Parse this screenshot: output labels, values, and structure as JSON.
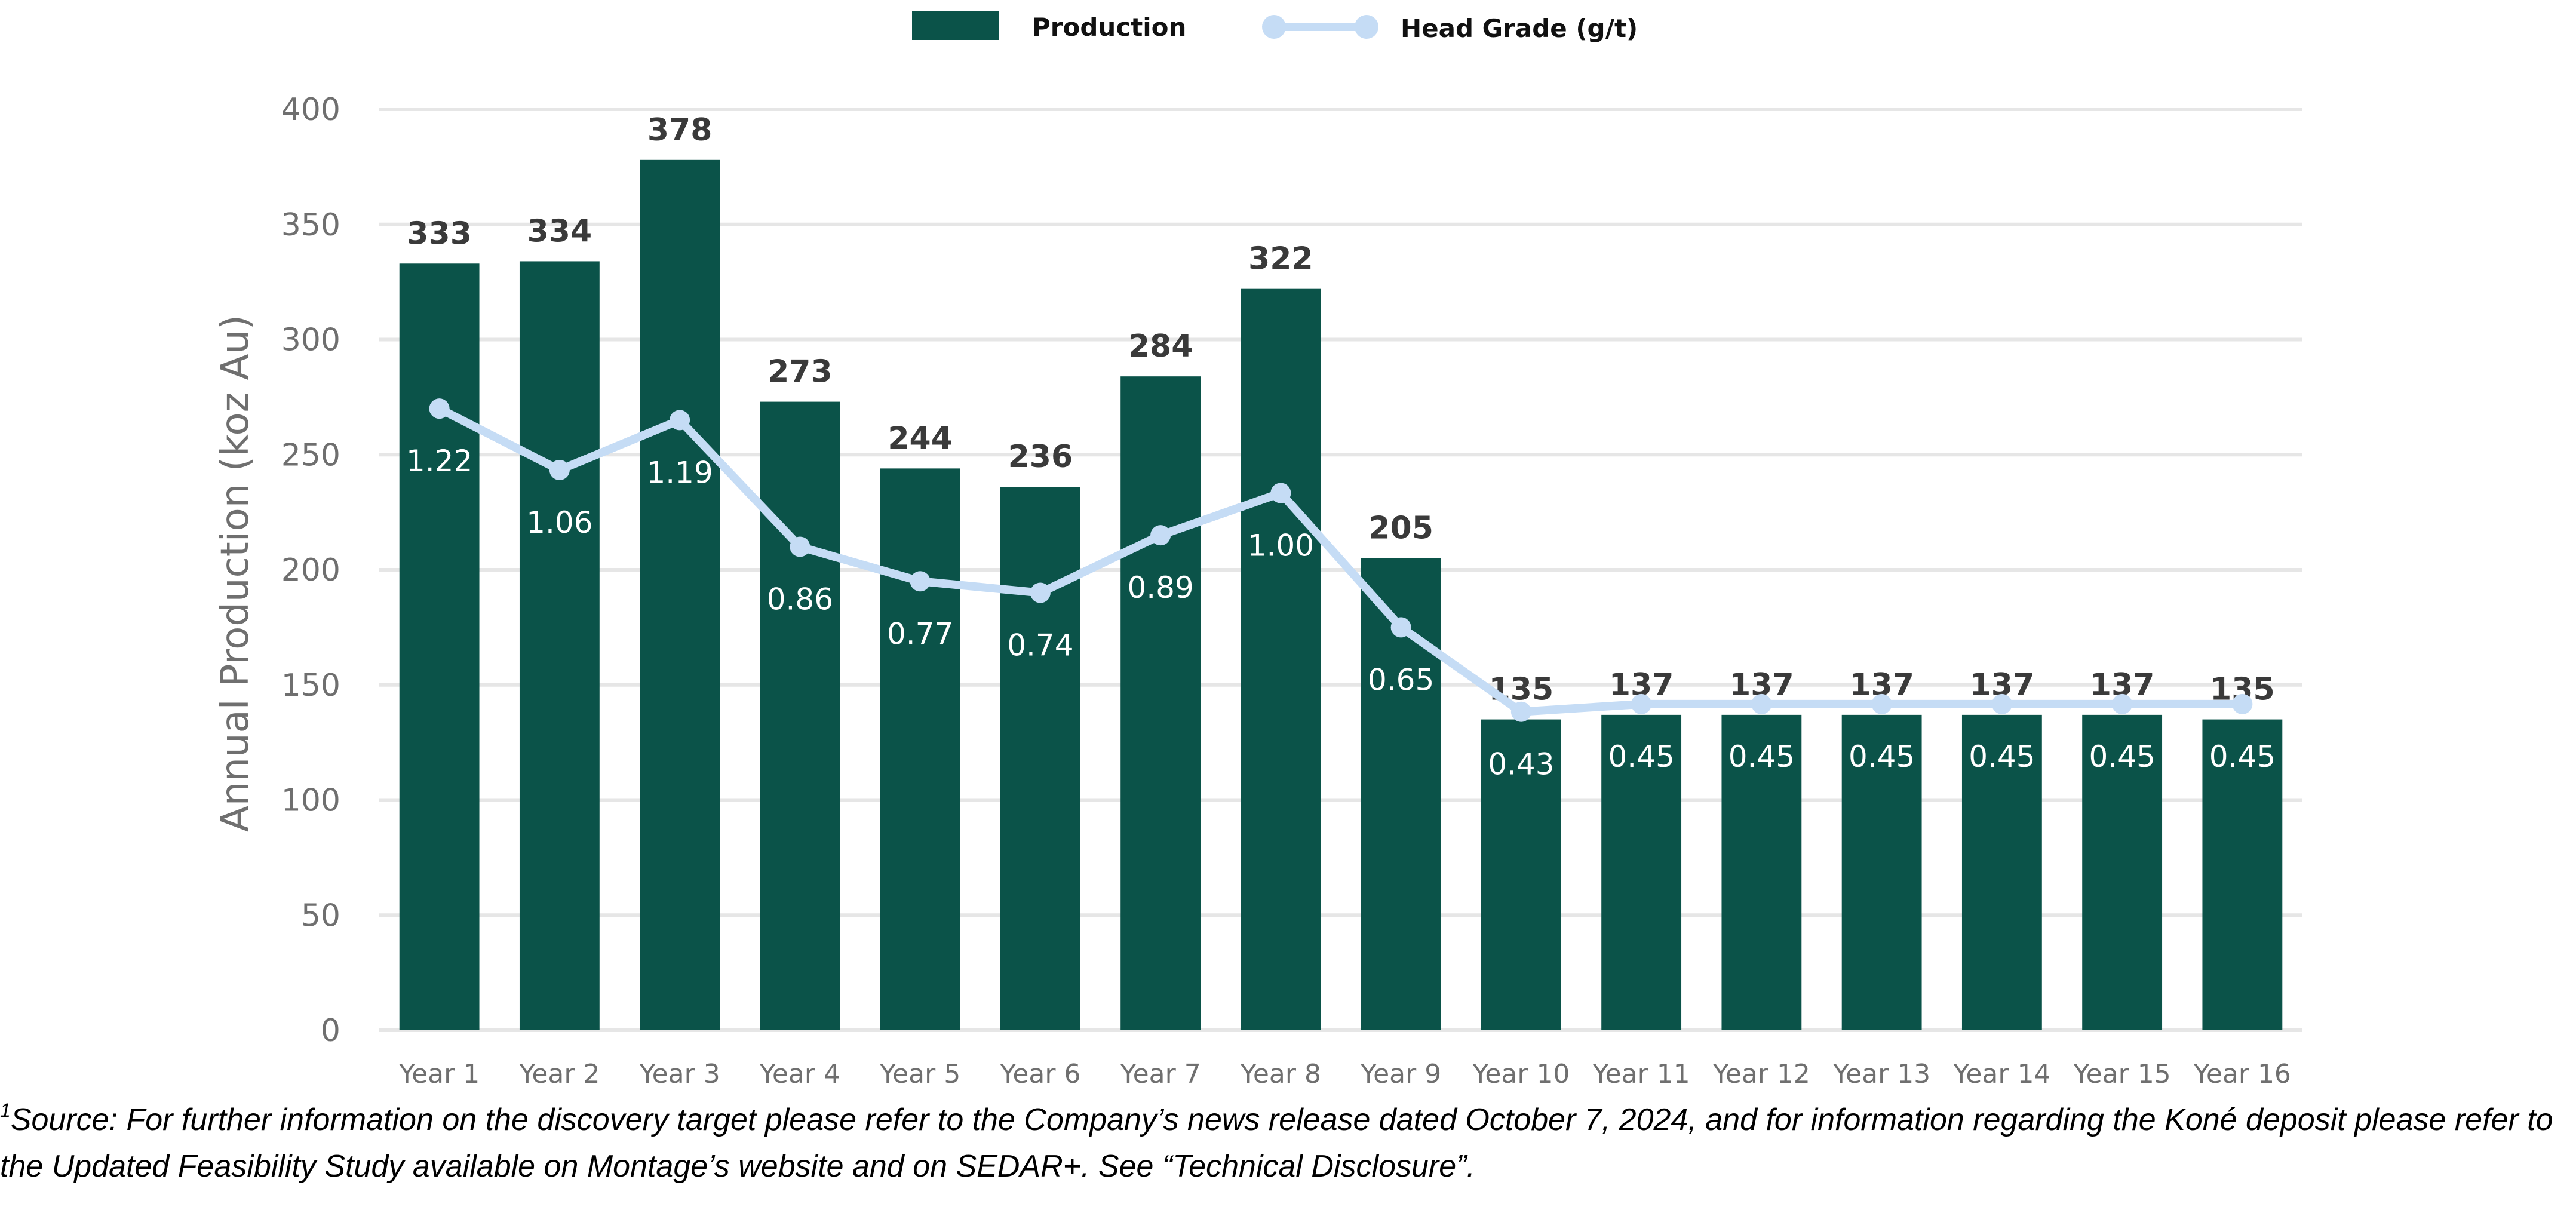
{
  "chart_data": {
    "type": "bar",
    "title": "",
    "xlabel": "",
    "ylabel": "Annual Production (koz Au)",
    "ylim": [
      0,
      400
    ],
    "yticks": [
      0,
      50,
      100,
      150,
      200,
      250,
      300,
      350,
      400
    ],
    "grid": true,
    "legend_position": "top-center",
    "categories": [
      "Year 1",
      "Year 2",
      "Year 3",
      "Year 4",
      "Year 5",
      "Year 6",
      "Year 7",
      "Year 8",
      "Year 9",
      "Year 10",
      "Year 11",
      "Year 12",
      "Year 13",
      "Year 14",
      "Year 15",
      "Year 16"
    ],
    "series": [
      {
        "name": "Production",
        "type": "bar",
        "color": "#0b5349",
        "values": [
          333,
          334,
          378,
          273,
          244,
          236,
          284,
          322,
          205,
          135,
          137,
          137,
          137,
          137,
          137,
          135
        ]
      },
      {
        "name": "Head Grade (g/t)",
        "type": "line",
        "color": "#c5dcf5",
        "values": [
          1.22,
          1.06,
          1.19,
          0.86,
          0.77,
          0.74,
          0.89,
          1.0,
          0.65,
          0.43,
          0.45,
          0.45,
          0.45,
          0.45,
          0.45,
          0.45
        ],
        "labels": [
          "1.22",
          "1.06",
          "1.19",
          "0.86",
          "0.77",
          "0.74",
          "0.89",
          "1.00",
          "0.65",
          "0.43",
          "0.45",
          "0.45",
          "0.45",
          "0.45",
          "0.45",
          "0.45"
        ],
        "secondary_axis_range": [
          -0.4,
          2.0
        ]
      }
    ]
  },
  "footnote": {
    "marker": "1",
    "text": "Source: For further information on the discovery target please refer to the Company’s news release dated October 7, 2024, and for information regarding the Koné deposit please refer to the Updated Feasibility Study available on Montage’s website and on SEDAR+. See “Technical Disclosure”."
  },
  "colors": {
    "gridline": "#e6e6e6",
    "axis_text": "#6f6f6f",
    "bar_label": "#3a3a3a"
  }
}
